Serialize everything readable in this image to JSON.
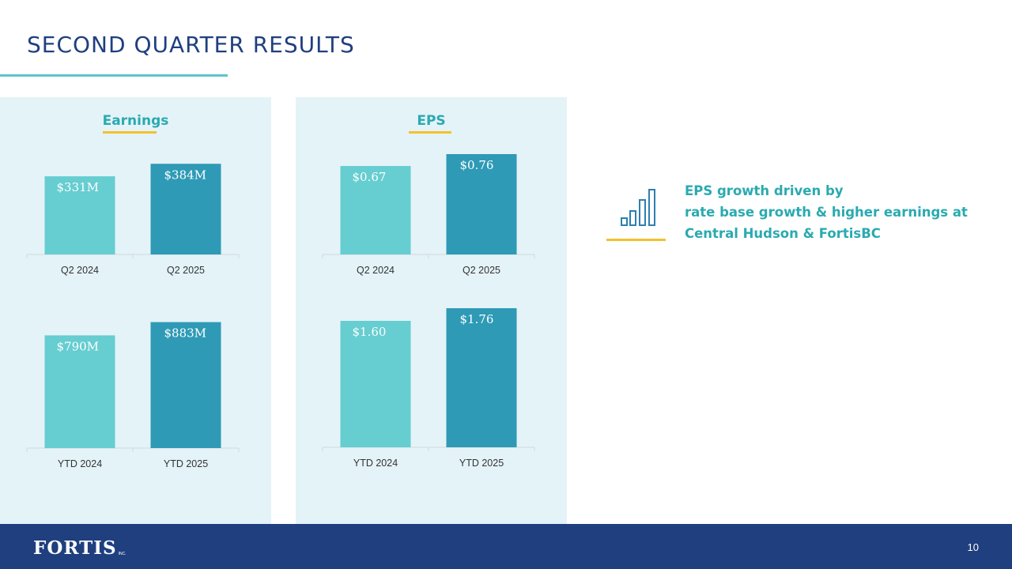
{
  "slide": {
    "title": "SECOND QUARTER RESULTS",
    "page_number": "10"
  },
  "panels": [
    {
      "heading": "Earnings"
    },
    {
      "heading": "EPS"
    }
  ],
  "callout": {
    "icon": "bar-growth-icon",
    "lines": [
      "EPS growth driven by",
      "rate base growth & higher earnings at",
      "Central Hudson & FortisBC"
    ]
  },
  "footer": {
    "logo_text": "FORTIS",
    "logo_suffix": "INC."
  },
  "colors": {
    "title": "#1f3f7f",
    "accent_teal": "#2aaab0",
    "accent_yellow": "#f2c12e",
    "bar_prior": "#66cdd1",
    "bar_current": "#2e9ab6",
    "panel_bg": "#e4f3f8",
    "footer_bg": "#1f3f7f"
  },
  "chart_data": [
    {
      "type": "bar",
      "categories": [
        "Q2 2024",
        "Q2 2025"
      ],
      "values": [
        331,
        384
      ],
      "labels": [
        "$331M",
        "$384M"
      ],
      "title": "",
      "ylim": [
        0,
        425
      ]
    },
    {
      "type": "bar",
      "categories": [
        "YTD 2024",
        "YTD 2025"
      ],
      "values": [
        790,
        883
      ],
      "labels": [
        "$790M",
        "$883M"
      ],
      "title": "",
      "ylim": [
        0,
        925
      ]
    },
    {
      "type": "bar",
      "categories": [
        "Q2 2024",
        "Q2 2025"
      ],
      "values": [
        0.67,
        0.76
      ],
      "labels": [
        "$0.67",
        "$0.76"
      ],
      "title": "",
      "ylim": [
        0,
        0.76
      ]
    },
    {
      "type": "bar",
      "categories": [
        "YTD 2024",
        "YTD 2025"
      ],
      "values": [
        1.6,
        1.76
      ],
      "labels": [
        "$1.60",
        "$1.76"
      ],
      "title": "",
      "ylim": [
        0,
        1.96
      ]
    }
  ]
}
